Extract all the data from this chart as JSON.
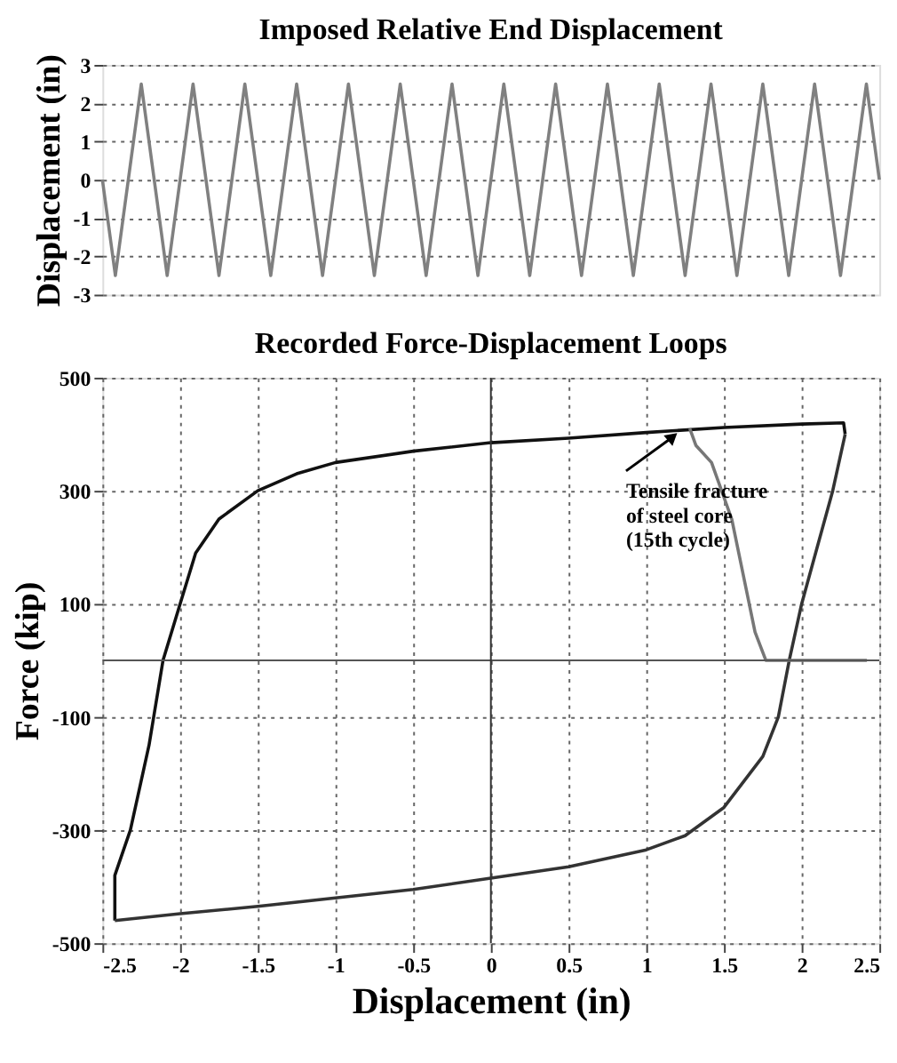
{
  "chart_data": [
    {
      "type": "line",
      "title": "Imposed Relative End Displacement",
      "ylabel": "Displacement (in)",
      "categories": [
        null,
        null,
        null,
        null,
        null,
        null,
        null,
        null,
        null,
        null,
        null,
        null,
        null,
        null,
        null,
        null,
        null,
        null,
        null,
        null,
        null,
        null,
        null,
        null,
        null,
        null,
        null,
        null,
        null,
        null,
        null,
        null,
        null,
        null,
        null,
        null,
        null,
        null,
        null,
        null,
        null,
        null,
        null,
        null,
        null,
        null,
        null,
        null,
        null,
        null,
        null,
        null,
        null,
        null,
        null,
        null,
        null,
        null,
        null,
        null,
        null
      ],
      "series": [
        {
          "color": "#808080",
          "values": [
            0,
            -2.5,
            0,
            2.5,
            0,
            -2.5,
            0,
            2.5,
            0,
            -2.5,
            0,
            2.5,
            0,
            -2.5,
            0,
            2.5,
            0,
            -2.5,
            0,
            2.5,
            0,
            -2.5,
            0,
            2.5,
            0,
            -2.5,
            0,
            2.5,
            0,
            -2.5,
            0,
            2.5,
            0,
            -2.5,
            0,
            2.5,
            0,
            -2.5,
            0,
            2.5,
            0,
            -2.5,
            0,
            2.5,
            0,
            -2.5,
            0,
            2.5,
            0,
            -2.5,
            0,
            2.5,
            0,
            -2.5,
            0,
            2.5,
            0,
            -2.5,
            0,
            2.5,
            0
          ]
        }
      ],
      "ylim": [
        -3,
        3
      ],
      "yticks": [
        -3,
        -2,
        -1,
        0,
        1,
        2,
        3
      ],
      "grid": "y",
      "tick_labels": "y",
      "line_style": "solid",
      "marker": "none"
    },
    {
      "type": "line",
      "title": "Recorded Force-Displacement Loops",
      "xlabel": "Displacement (in)",
      "ylabel": "Force (kip)",
      "series": [
        {
          "color": "#111111",
          "x": [
            -2.42,
            -2.42,
            -2.32,
            -2.2,
            -2.11,
            -2.0,
            -1.9,
            -1.75,
            -1.5,
            -1.25,
            -1,
            -0.5,
            0,
            0.5,
            1,
            1.5,
            2,
            2.27,
            2.28
          ],
          "values": [
            -460,
            -380,
            -300,
            -150,
            0,
            100,
            190,
            250,
            300,
            330,
            350,
            370,
            385,
            393,
            403,
            412,
            418,
            420,
            400
          ]
        },
        {
          "color": "#333333",
          "x": [
            2.28,
            2.2,
            2.1,
            2.0,
            1.92,
            1.85,
            1.75,
            1.5,
            1.25,
            1,
            0.5,
            0,
            -0.5,
            -1,
            -1.5,
            -2,
            -2.42
          ],
          "values": [
            400,
            300,
            200,
            100,
            0,
            -100,
            -170,
            -260,
            -310,
            -335,
            -365,
            -385,
            -405,
            -420,
            -435,
            -448,
            -460
          ]
        },
        {
          "color": "#777777",
          "x": [
            1.28,
            1.32,
            1.42,
            1.55,
            1.7,
            1.77,
            2.42
          ],
          "values": [
            410,
            380,
            350,
            250,
            50,
            0,
            0
          ]
        }
      ],
      "xlim": [
        -2.5,
        2.5
      ],
      "xticks": [
        -2.5,
        -2,
        -1.5,
        -1,
        -0.5,
        0,
        0.5,
        1,
        1.5,
        2,
        2.5
      ],
      "ylim": [
        -500,
        500
      ],
      "yticks": [
        -500,
        -300,
        -100,
        100,
        300,
        500
      ],
      "grid": true,
      "ref_lines": [
        {
          "axis": "y",
          "value": 0,
          "color": "#555555",
          "line_style": "solid"
        },
        {
          "axis": "x",
          "value": 0,
          "color": "#333333",
          "line_style": "solid"
        }
      ],
      "annotations": [
        {
          "text": "Tensile fracture\nof steel core\n(15th cycle)",
          "x": 1.22,
          "y": 405
        }
      ],
      "line_style": "solid",
      "marker": "none"
    }
  ]
}
